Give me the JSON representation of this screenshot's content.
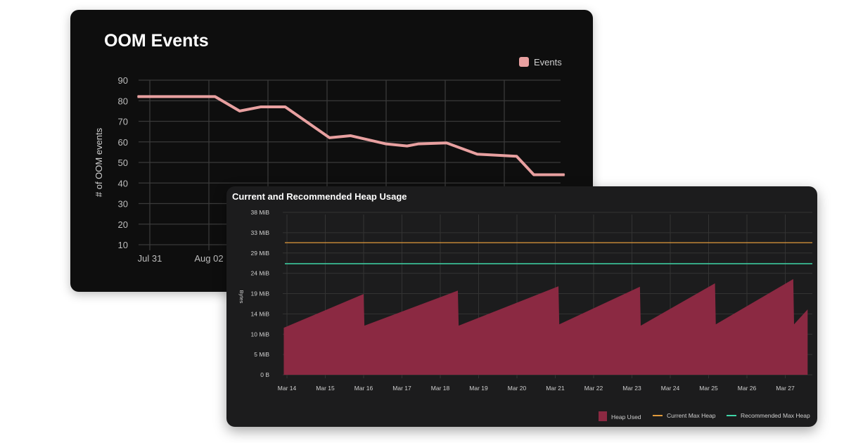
{
  "chart_data": [
    {
      "type": "line",
      "title": "OOM Events",
      "xlabel": "",
      "ylabel": "# of OOM events",
      "ylim": [
        10,
        90
      ],
      "yticks": [
        90,
        80,
        70,
        60,
        50,
        40,
        30,
        20,
        10
      ],
      "xtick_labels": [
        "Jul 31",
        "Aug 02"
      ],
      "grid": true,
      "legend": "top-right",
      "series": [
        {
          "name": "Events",
          "color": "#e8a0a0",
          "points": [
            [
              "Jul 30 14:00",
              82
            ],
            [
              "Aug 02 05:00",
              82
            ],
            [
              "Aug 03 01:00",
              75
            ],
            [
              "Aug 03 18:00",
              77
            ],
            [
              "Aug 04 14:00",
              77
            ],
            [
              "Aug 06 02:00",
              62
            ],
            [
              "Aug 06 19:00",
              63
            ],
            [
              "Aug 08 00:00",
              59
            ],
            [
              "Aug 08 17:00",
              58
            ],
            [
              "Aug 09 02:00",
              59
            ],
            [
              "Aug 10 01:00",
              59.5
            ],
            [
              "Aug 11 02:00",
              54
            ],
            [
              "Aug 12 10:00",
              53
            ],
            [
              "Aug 13 00:00",
              44
            ],
            [
              "Aug 14 01:00",
              44
            ]
          ]
        }
      ]
    },
    {
      "type": "area",
      "title": "Current and Recommended Heap Usage",
      "xlabel": "",
      "ylabel": "Bytes",
      "ylim_mib": [
        0,
        38
      ],
      "ytick_labels": [
        "0 B",
        "5 MiB",
        "10 MiB",
        "14 MiB",
        "19 MiB",
        "24 MiB",
        "29 MiB",
        "33 MiB",
        "38 MiB"
      ],
      "xtick_labels": [
        "Mar 14",
        "Mar 15",
        "Mar 16",
        "Mar 17",
        "Mar 18",
        "Mar 19",
        "Mar 20",
        "Mar 21",
        "Mar 22",
        "Mar 23",
        "Mar 24",
        "Mar 25",
        "Mar 26",
        "Mar 27"
      ],
      "grid": true,
      "legend": "bottom-right",
      "series": [
        {
          "name": "Heap Used",
          "color": "#8b2942",
          "points": [
            [
              "Mar 13 22:00",
              11
            ],
            [
              "Mar 16 00:00",
              18.9
            ],
            [
              "Mar 16 00:30",
              11.5
            ],
            [
              "Mar 18 11:00",
              19.7
            ],
            [
              "Mar 18 11:30",
              11.5
            ],
            [
              "Mar 21 02:00",
              20.7
            ],
            [
              "Mar 21 02:30",
              11.8
            ],
            [
              "Mar 23 05:00",
              20.6
            ],
            [
              "Mar 23 05:30",
              11.5
            ],
            [
              "Mar 25 04:00",
              21.4
            ],
            [
              "Mar 25 04:30",
              11.8
            ],
            [
              "Mar 27 05:00",
              22.4
            ],
            [
              "Mar 27 05:30",
              11.8
            ],
            [
              "Mar 27 14:00",
              15.3
            ]
          ]
        },
        {
          "name": "Current Max Heap",
          "color": "#e09a3c",
          "value": 30.9
        },
        {
          "name": "Recommended Max Heap",
          "color": "#3fd6a8",
          "value": 26
        }
      ]
    }
  ]
}
